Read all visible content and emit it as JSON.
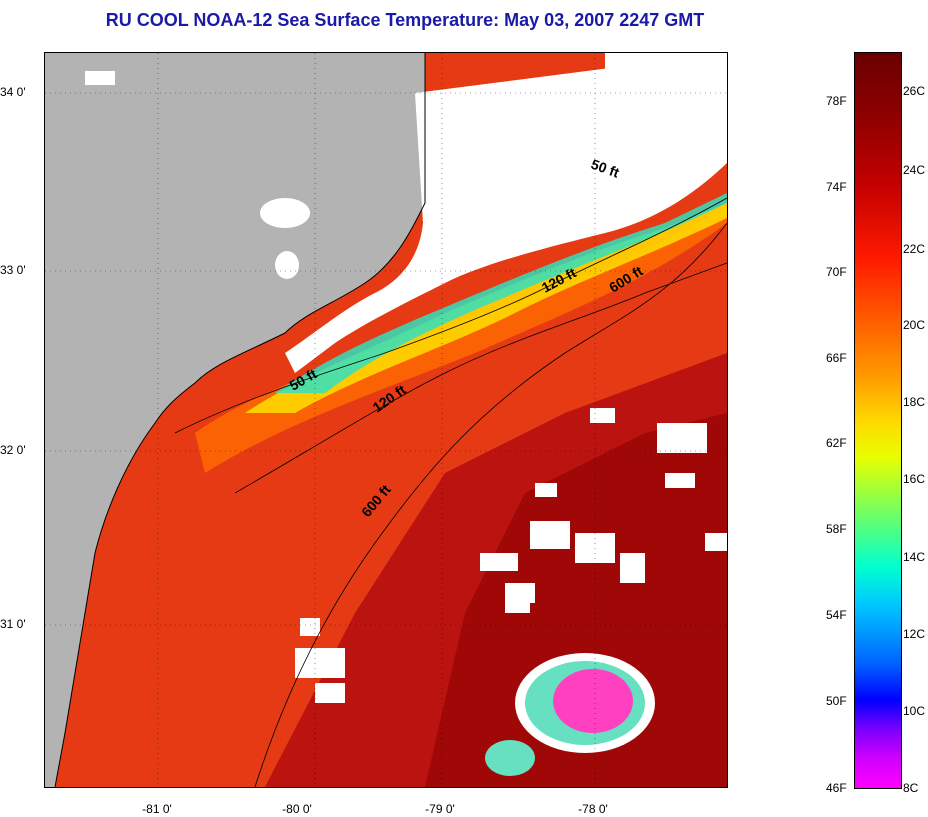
{
  "title": "RU COOL  NOAA-12  Sea Surface Temperature:  May 03, 2007 2247 GMT",
  "y_axis_labels": [
    "34 0'",
    "33 0'",
    "32 0'",
    "31 0'"
  ],
  "x_axis_labels": [
    "-81 0'",
    "-80 0'",
    "-79 0'",
    "-78 0'"
  ],
  "contour_labels": [
    "50 ft",
    "120 ft",
    "600 ft",
    "50 ft",
    "120 ft",
    "600 ft"
  ],
  "colorbar": {
    "fahrenheit": [
      "78F",
      "74F",
      "70F",
      "66F",
      "62F",
      "58F",
      "54F",
      "50F",
      "46F"
    ],
    "celsius": [
      "26C",
      "24C",
      "22C",
      "20C",
      "18C",
      "16C",
      "14C",
      "12C",
      "10C",
      "8C"
    ]
  },
  "colors": {
    "title": "#1a1aa8",
    "land": "#b3b3b3",
    "cloud": "#ffffff",
    "warm_water": "#e53a14",
    "gulf_stream": "#a00808",
    "cold_eddy": "#ff40c0"
  },
  "icons": []
}
